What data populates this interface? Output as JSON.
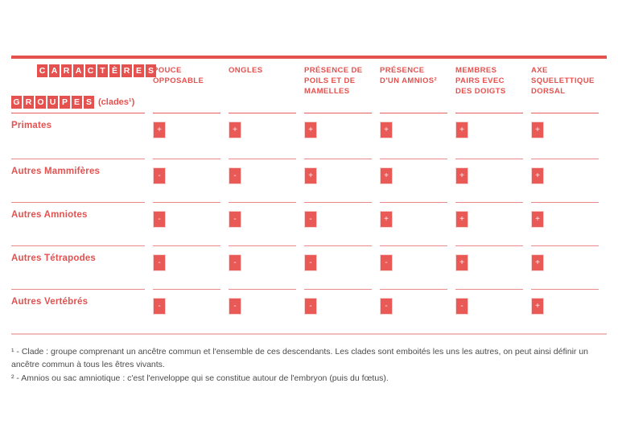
{
  "colors": {
    "red": "#e4514f",
    "separator_red": "#ea8a88",
    "bottom_line_pink": "#f0bbbb",
    "footnote_gray": "#4b4b4b"
  },
  "header": {
    "caracteres": "CARACTÈRES",
    "groupes": "GROUPES",
    "clades_label": "(clades¹)"
  },
  "table": {
    "columns": [
      "POUCE OPPOSABLE",
      "ONGLES",
      "PRÉSENCE DE POILS ET DE MAMELLES",
      "PRÉSENCE D'UN AMNIOS²",
      "MEMBRES PAIRS EVEC DES DOIGTS",
      "AXE SQUELETTIQUE DORSAL"
    ],
    "rows": [
      {
        "label": "Primates",
        "values": [
          "+",
          "+",
          "+",
          "+",
          "+",
          "+"
        ]
      },
      {
        "label": "Autres Mammifères",
        "values": [
          "-",
          "-",
          "+",
          "+",
          "+",
          "+"
        ]
      },
      {
        "label": "Autres Amniotes",
        "values": [
          "-",
          "-",
          "-",
          "+",
          "+",
          "+"
        ]
      },
      {
        "label": "Autres Tétrapodes",
        "values": [
          "-",
          "-",
          "-",
          "-",
          "+",
          "+"
        ]
      },
      {
        "label": "Autres Vertébrés",
        "values": [
          "-",
          "-",
          "-",
          "-",
          "-",
          "+"
        ]
      }
    ]
  },
  "footnotes": [
    "¹ - Clade : groupe comprenant un ancêtre commun et l'ensemble de ces descendants. Les clades sont emboités les uns les autres, on peut ainsi définir un ancêtre commun à tous les êtres vivants.",
    "² - Amnios ou sac amniotique : c'est l'enveloppe qui se constitue autour de l'embryon (puis du fœtus)."
  ]
}
